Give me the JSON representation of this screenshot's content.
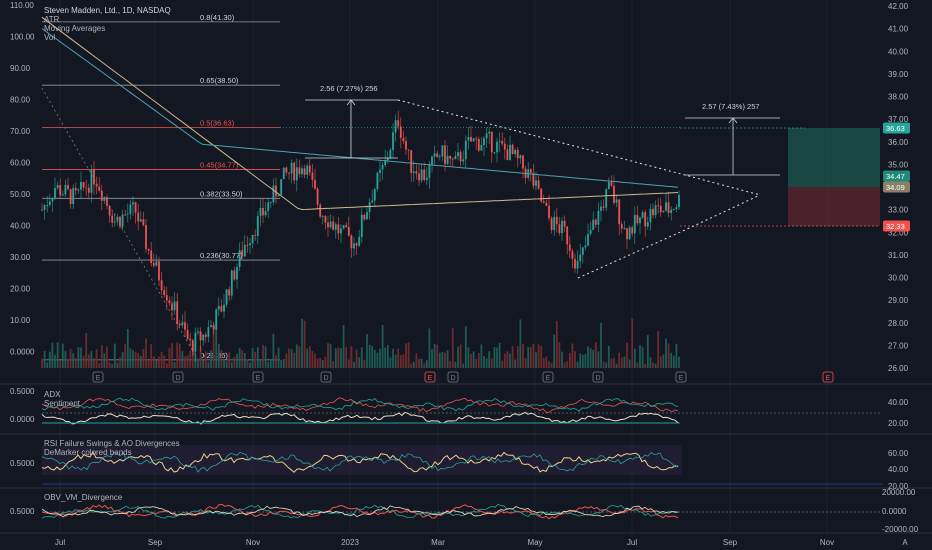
{
  "header": {
    "symbol": "Steven Madden, Ltd., 1D, NASDAQ",
    "indicators": [
      "ATR",
      "Moving Averages",
      "Vol"
    ]
  },
  "panes": {
    "adx": {
      "labels": [
        "ADX",
        "Sentiment"
      ]
    },
    "rsi": {
      "labels": [
        "RSI Failure Swings & AO Divergences",
        "DeMarker colored bands"
      ]
    },
    "obv": {
      "labels": [
        "OBV_VM_Divergence"
      ]
    }
  },
  "colors": {
    "background": "#131722",
    "grid": "#1e222d",
    "up": "#26a69a",
    "down": "#ef5350",
    "ma_long": "#d1b98c",
    "ma_short": "#4aa3b5",
    "target": "#1e6e5a",
    "stop": "#6e2a33"
  },
  "chart_data": {
    "type": "candlestick",
    "left_axis": [
      "110.00",
      "100.00",
      "90.00",
      "80.00",
      "70.00",
      "60.00",
      "50.00",
      "40.00",
      "30.00",
      "20.00",
      "10.00",
      "0.0000"
    ],
    "right_axis": [
      "42.00",
      "41.00",
      "40.00",
      "39.00",
      "38.00",
      "37.00",
      "36.00",
      "35.00",
      "34.00",
      "33.00",
      "32.00",
      "31.00",
      "30.00",
      "29.00",
      "28.00",
      "27.00",
      "26.00"
    ],
    "x_axis": [
      "Jul",
      "Sep",
      "Nov",
      "2023",
      "Mar",
      "May",
      "Jul",
      "Sep",
      "Nov",
      "A"
    ],
    "fib_levels": [
      {
        "label": "0.8(41.30)",
        "value": 41.3
      },
      {
        "label": "0.65(38.50)",
        "value": 38.5
      },
      {
        "label": "0.5(36.63)",
        "value": 36.63
      },
      {
        "label": "0.45(34.77)",
        "value": 34.77
      },
      {
        "label": "0.382(33.50)",
        "value": 33.5
      },
      {
        "label": "0.236(30.77)",
        "value": 30.77
      },
      {
        "label": "0(26.36)",
        "value": 26.36
      }
    ],
    "measure_labels": [
      "2.56 (7.27%) 256",
      "2.57 (7.43%) 257"
    ],
    "price_tags": [
      {
        "text": "36.63",
        "color": "#26a69a"
      },
      {
        "text": "34.47",
        "color": "#1e8a7a"
      },
      {
        "text": "34.09",
        "color": "#8a8066"
      },
      {
        "text": "32.33",
        "color": "#ef5350"
      }
    ],
    "adx_axis_left": [
      "0.5000",
      "0.0000"
    ],
    "adx_axis_right": [
      "40.00",
      "20.00"
    ],
    "rsi_axis_left": [
      "0.5000"
    ],
    "rsi_axis_right": [
      "60.00",
      "40.00",
      "20.00"
    ],
    "obv_axis_left": [
      "0.5000"
    ],
    "obv_axis_right": [
      "20000.00",
      "0.0000",
      "-20000.00"
    ]
  }
}
